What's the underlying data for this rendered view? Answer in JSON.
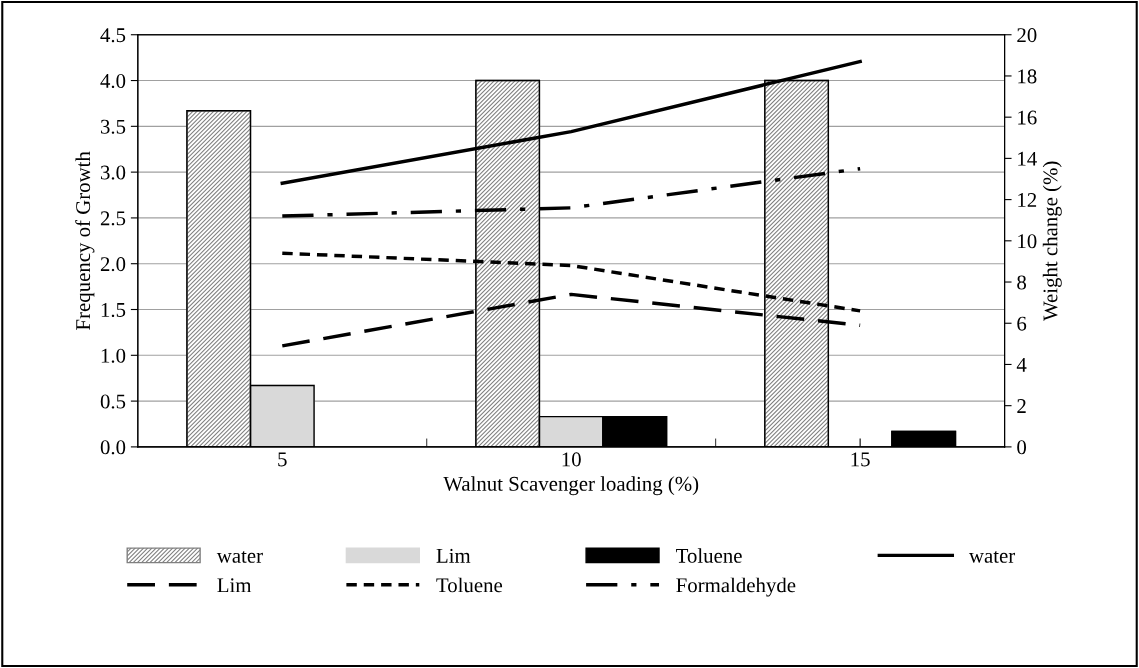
{
  "chart_data": {
    "type": "bar",
    "xlabel": "Walnut Scavenger loading (%)",
    "ylabel": "Frequency of Growth",
    "y2label": "Weight change (%)",
    "categories": [
      "5",
      "10",
      "15"
    ],
    "series": [
      {
        "name": "water",
        "color": "#808080",
        "values": [
          3.67,
          4.0,
          4.0
        ]
      },
      {
        "name": "Lim",
        "color": "#d9d9d9",
        "values": [
          0.67,
          0.33,
          null
        ]
      },
      {
        "name": "Toluene",
        "color": "#000000",
        "values": [
          null,
          0.33,
          0.17
        ]
      },
      {
        "name": "water",
        "type": "line",
        "axis": "y2",
        "color": "#000000",
        "line_style": "solid",
        "values": [
          12.8,
          15.3,
          18.7
        ]
      },
      {
        "name": "Lim",
        "type": "line",
        "axis": "y2",
        "color": "#000000",
        "line_style": "longdash",
        "values": [
          4.9,
          7.4,
          5.9
        ]
      },
      {
        "name": "Toluene",
        "type": "line",
        "axis": "y2",
        "color": "#000000",
        "line_style": "dashed",
        "values": [
          9.4,
          8.8,
          6.6
        ]
      },
      {
        "name": "Formaldehyde",
        "type": "line",
        "axis": "y2",
        "color": "#000000",
        "line_style": "dashdot",
        "values": [
          11.2,
          11.6,
          13.5
        ]
      }
    ],
    "ylim": [
      0,
      4.5
    ],
    "yticks": [
      {
        "value": 0,
        "label": "0.0"
      },
      {
        "value": 0.5,
        "label": "0.5"
      },
      {
        "value": 1,
        "label": "1.0"
      },
      {
        "value": 1.5,
        "label": "1.5"
      },
      {
        "value": 2,
        "label": "2.0"
      },
      {
        "value": 2.5,
        "label": "2.5"
      },
      {
        "value": 3,
        "label": "3.0"
      },
      {
        "value": 3.5,
        "label": "3.5"
      },
      {
        "value": 4,
        "label": "4.0"
      },
      {
        "value": 4.5,
        "label": "4.5"
      }
    ],
    "y2lim": [
      0,
      20
    ],
    "y2ticks": [
      0,
      2,
      4,
      6,
      8,
      10,
      12,
      14,
      16,
      18,
      20
    ],
    "grid": "y",
    "legend": "bottom"
  }
}
